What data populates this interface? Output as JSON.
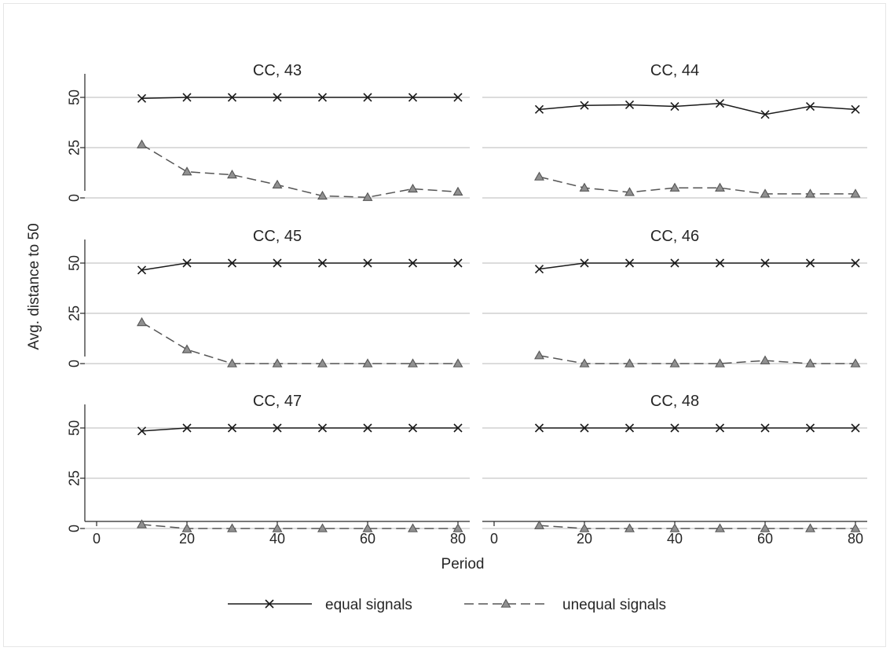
{
  "chart_data": {
    "type": "line",
    "ylabel": "Avg. distance to 50",
    "xlabel": "Period",
    "x_ticks": [
      0,
      20,
      40,
      60,
      80
    ],
    "y_ticks": [
      0,
      25,
      50
    ],
    "xlim": [
      0,
      80
    ],
    "ylim": [
      0,
      50
    ],
    "grid": true,
    "legend": {
      "placement": "bottom",
      "entries": [
        "equal signals",
        "unequal signals"
      ]
    },
    "series_styles": [
      {
        "name": "equal signals",
        "line": "solid",
        "marker": "x",
        "color": "#1a1a1a"
      },
      {
        "name": "unequal signals",
        "line": "dashed",
        "marker": "triangle",
        "color": "#555555",
        "marker_fill": "#909090"
      }
    ],
    "x": [
      10,
      20,
      30,
      40,
      50,
      60,
      70,
      80
    ],
    "panels": [
      {
        "title": "CC, 43",
        "series": [
          {
            "name": "equal signals",
            "values": [
              49.5,
              50,
              50,
              50,
              50,
              50,
              50,
              50
            ]
          },
          {
            "name": "unequal signals",
            "values": [
              26.5,
              13,
              11.5,
              6.5,
              1,
              0.3,
              4.5,
              3
            ]
          }
        ]
      },
      {
        "title": "CC, 44",
        "series": [
          {
            "name": "equal signals",
            "values": [
              44,
              46,
              46.3,
              45.5,
              47,
              41.5,
              45.5,
              44
            ]
          },
          {
            "name": "unequal signals",
            "values": [
              10.5,
              5,
              2.8,
              5,
              5,
              2,
              2,
              2
            ]
          }
        ]
      },
      {
        "title": "CC, 45",
        "series": [
          {
            "name": "equal signals",
            "values": [
              46.5,
              50,
              50,
              50,
              50,
              50,
              50,
              50
            ]
          },
          {
            "name": "unequal signals",
            "values": [
              20.5,
              7,
              0,
              0,
              0,
              0,
              0,
              0
            ]
          }
        ]
      },
      {
        "title": "CC, 46",
        "series": [
          {
            "name": "equal signals",
            "values": [
              47,
              50,
              50,
              50,
              50,
              50,
              50,
              50
            ]
          },
          {
            "name": "unequal signals",
            "values": [
              4,
              0,
              0,
              0,
              0,
              1.5,
              0,
              0
            ]
          }
        ]
      },
      {
        "title": "CC, 47",
        "series": [
          {
            "name": "equal signals",
            "values": [
              48.5,
              50,
              50,
              50,
              50,
              50,
              50,
              50
            ]
          },
          {
            "name": "unequal signals",
            "values": [
              2,
              0,
              0,
              0,
              0,
              0,
              0,
              0
            ]
          }
        ]
      },
      {
        "title": "CC, 48",
        "series": [
          {
            "name": "equal signals",
            "values": [
              50,
              50,
              50,
              50,
              50,
              50,
              50,
              50
            ]
          },
          {
            "name": "unequal signals",
            "values": [
              1.5,
              0,
              0,
              0,
              0,
              0,
              0,
              0
            ]
          }
        ]
      }
    ]
  }
}
